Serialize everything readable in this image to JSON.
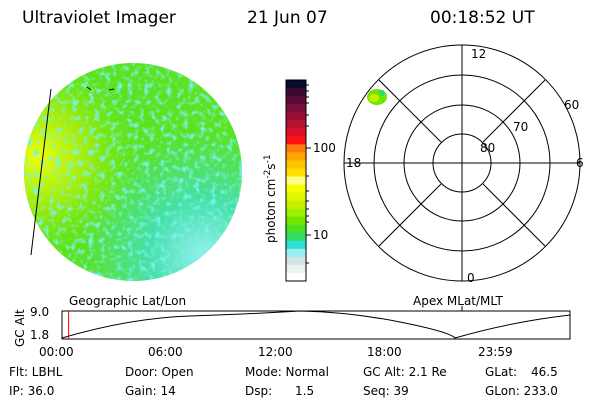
{
  "header": {
    "instrument": "Ultraviolet Imager",
    "date": "21 Jun 07",
    "time": "00:18:52 UT"
  },
  "colorbar": {
    "label": "photon cm",
    "exp1": "-2",
    "mid": "s",
    "exp2": "-1",
    "ticks": [
      "100",
      "10"
    ],
    "colors": [
      "#0a0a30",
      "#3a0a30",
      "#5a0a38",
      "#78103a",
      "#981035",
      "#b81030",
      "#d8102c",
      "#ff1010",
      "#ff7a10",
      "#ffa400",
      "#ffc400",
      "#ffe000",
      "#ffff88",
      "#f4ff00",
      "#e0f800",
      "#c4f000",
      "#a0ee00",
      "#70e600",
      "#4ee020",
      "#30dc64",
      "#30e0d4",
      "#98f0f4",
      "#d4e4e4",
      "#eaf4ee",
      "#ffffff"
    ]
  },
  "polar": {
    "top": "12",
    "bottom": "0",
    "left": "18",
    "right": "6",
    "rings": [
      "60",
      "70",
      "80"
    ]
  },
  "timeline": {
    "left_title": "Geographic Lat/Lon",
    "right_title": "Apex MLat/MLT",
    "ylabel": "GC Alt",
    "ymax": "9.0",
    "ymin": "1.8",
    "xticks": [
      "00:00",
      "06:00",
      "12:00",
      "18:00",
      "23:59"
    ],
    "current_fraction": 0.013,
    "marker_color": "#ff0000"
  },
  "status": {
    "flt": "Flt: LBHL",
    "ip": "IP: 36.0",
    "door": "Door: Open",
    "gain": "Gain: 14",
    "mode": "Mode: Normal",
    "dsp_label": "Dsp:",
    "dsp_value": "1.5",
    "gcalt": "GC Alt: 2.1 Re",
    "seq": "Seq: 39",
    "glat_label": "GLat:",
    "glat_value": "46.5",
    "glon": "GLon: 233.0"
  }
}
